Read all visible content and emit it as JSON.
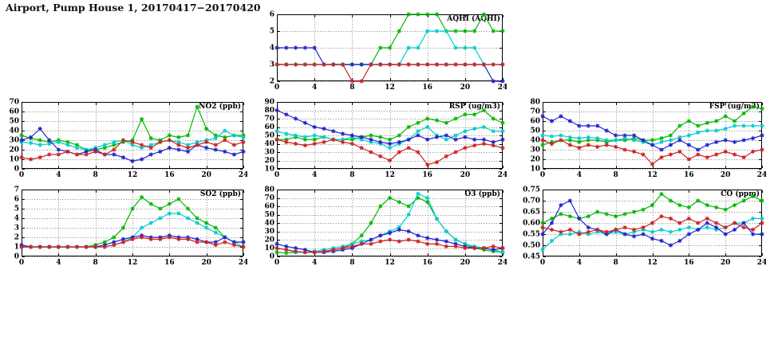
{
  "page_title": "Airport, Pump House 1, 20170417−20170420",
  "palette": {
    "green": "#00b800",
    "cyan": "#00cccc",
    "blue": "#2222cc",
    "red": "#cc2222"
  },
  "chart_data": {
    "note": "see charts array",
    "type": "line"
  },
  "charts": [
    {
      "id": "aqhi",
      "label": "AQHI (AQHI)",
      "type": "line",
      "xlim": [
        0,
        24
      ],
      "x_tick_labels": [
        "0",
        "4",
        "8",
        "12",
        "16",
        "20",
        "24"
      ],
      "x_ticks": [
        0,
        4,
        8,
        12,
        16,
        20,
        24
      ],
      "ylim": [
        2,
        6
      ],
      "y_ticks": [
        2,
        3,
        4,
        5,
        6
      ],
      "y_tick_labels": [
        "2",
        "3",
        "4",
        "5",
        "6"
      ],
      "x_start": 0,
      "x_step": 1,
      "series": [
        {
          "name": "green-series",
          "color": "#00b800",
          "values": [
            3,
            3,
            3,
            3,
            3,
            3,
            3,
            3,
            3,
            3,
            3,
            4,
            4,
            5,
            6,
            6,
            6,
            6,
            5,
            5,
            5,
            5,
            6,
            5,
            5
          ]
        },
        {
          "name": "cyan-series",
          "color": "#00cccc",
          "values": [
            3,
            3,
            3,
            3,
            3,
            3,
            3,
            3,
            3,
            3,
            3,
            3,
            3,
            3,
            4,
            4,
            5,
            5,
            5,
            4,
            4,
            4,
            3,
            3,
            3
          ]
        },
        {
          "name": "blue-series",
          "color": "#2222cc",
          "values": [
            4,
            4,
            4,
            4,
            4,
            3,
            3,
            3,
            3,
            3,
            3,
            3,
            3,
            3,
            3,
            3,
            3,
            3,
            3,
            3,
            3,
            3,
            3,
            2,
            2
          ]
        },
        {
          "name": "red-series",
          "color": "#cc2222",
          "values": [
            3,
            3,
            3,
            3,
            3,
            3,
            3,
            3,
            2,
            2,
            3,
            3,
            3,
            3,
            3,
            3,
            3,
            3,
            3,
            3,
            3,
            3,
            3,
            3,
            3
          ]
        }
      ]
    },
    {
      "id": "no2",
      "label": "NO2 (ppb)",
      "type": "line",
      "xlim": [
        0,
        24
      ],
      "x_tick_labels": [
        "0",
        "4",
        "8",
        "12",
        "16",
        "20",
        "24"
      ],
      "x_ticks": [
        0,
        4,
        8,
        12,
        16,
        20,
        24
      ],
      "ylim": [
        0,
        70
      ],
      "y_ticks": [
        0,
        10,
        20,
        30,
        40,
        50,
        60,
        70
      ],
      "y_tick_labels": [
        "0",
        "10",
        "20",
        "30",
        "40",
        "50",
        "60",
        "70"
      ],
      "x_start": 0,
      "x_step": 1,
      "series": [
        {
          "name": "green-series",
          "color": "#00b800",
          "values": [
            35,
            32,
            30,
            28,
            30,
            28,
            25,
            20,
            20,
            22,
            25,
            28,
            30,
            52,
            32,
            30,
            35,
            33,
            35,
            65,
            42,
            35,
            33,
            35,
            35
          ]
        },
        {
          "name": "cyan-series",
          "color": "#00cccc",
          "values": [
            28,
            27,
            25,
            26,
            28,
            25,
            22,
            20,
            22,
            25,
            28,
            30,
            25,
            22,
            25,
            28,
            30,
            28,
            25,
            28,
            30,
            32,
            40,
            35,
            33
          ]
        },
        {
          "name": "blue-series",
          "color": "#2222cc",
          "values": [
            30,
            33,
            42,
            30,
            20,
            18,
            15,
            18,
            20,
            15,
            15,
            12,
            8,
            10,
            15,
            18,
            22,
            20,
            18,
            25,
            22,
            20,
            18,
            15,
            18
          ]
        },
        {
          "name": "red-series",
          "color": "#cc2222",
          "values": [
            12,
            10,
            12,
            15,
            15,
            18,
            15,
            15,
            18,
            15,
            20,
            30,
            28,
            25,
            22,
            28,
            30,
            25,
            22,
            25,
            28,
            25,
            30,
            25,
            28
          ]
        }
      ]
    },
    {
      "id": "rsp",
      "label": "RSP (ug/m3)",
      "type": "line",
      "xlim": [
        0,
        24
      ],
      "x_tick_labels": [
        "0",
        "4",
        "8",
        "12",
        "16",
        "20",
        "24"
      ],
      "x_ticks": [
        0,
        4,
        8,
        12,
        16,
        20,
        24
      ],
      "ylim": [
        10,
        90
      ],
      "y_ticks": [
        10,
        20,
        30,
        40,
        50,
        60,
        70,
        80,
        90
      ],
      "y_tick_labels": [
        "10",
        "20",
        "30",
        "40",
        "50",
        "60",
        "70",
        "80",
        "90"
      ],
      "x_start": 0,
      "x_step": 1,
      "series": [
        {
          "name": "green-series",
          "color": "#00b800",
          "values": [
            45,
            45,
            48,
            45,
            45,
            48,
            45,
            45,
            45,
            48,
            50,
            48,
            45,
            50,
            60,
            65,
            70,
            68,
            65,
            70,
            75,
            75,
            80,
            70,
            65
          ]
        },
        {
          "name": "cyan-series",
          "color": "#00cccc",
          "values": [
            55,
            52,
            50,
            48,
            50,
            48,
            45,
            45,
            48,
            45,
            42,
            40,
            35,
            40,
            45,
            55,
            60,
            50,
            45,
            50,
            55,
            58,
            60,
            55,
            55
          ]
        },
        {
          "name": "blue-series",
          "color": "#2222cc",
          "values": [
            80,
            75,
            70,
            65,
            60,
            58,
            55,
            52,
            50,
            48,
            45,
            42,
            40,
            42,
            45,
            50,
            45,
            48,
            50,
            45,
            48,
            45,
            45,
            42,
            45
          ]
        },
        {
          "name": "red-series",
          "color": "#cc2222",
          "values": [
            45,
            42,
            40,
            38,
            40,
            42,
            45,
            42,
            40,
            35,
            30,
            25,
            20,
            30,
            35,
            30,
            15,
            18,
            25,
            30,
            35,
            38,
            40,
            38,
            35
          ]
        }
      ]
    },
    {
      "id": "fsp",
      "label": "FSP (ug/m3)",
      "type": "line",
      "xlim": [
        0,
        24
      ],
      "x_tick_labels": [
        "0",
        "4",
        "8",
        "12",
        "16",
        "20",
        "24"
      ],
      "x_ticks": [
        0,
        4,
        8,
        12,
        16,
        20,
        24
      ],
      "ylim": [
        10,
        80
      ],
      "y_ticks": [
        10,
        20,
        30,
        40,
        50,
        60,
        70,
        80
      ],
      "y_tick_labels": [
        "10",
        "20",
        "30",
        "40",
        "50",
        "60",
        "70",
        "80"
      ],
      "x_start": 0,
      "x_step": 1,
      "series": [
        {
          "name": "green-series",
          "color": "#00b800",
          "values": [
            35,
            38,
            40,
            40,
            38,
            40,
            40,
            38,
            40,
            40,
            42,
            40,
            40,
            42,
            45,
            55,
            60,
            55,
            58,
            60,
            65,
            60,
            68,
            75,
            73
          ]
        },
        {
          "name": "cyan-series",
          "color": "#00cccc",
          "values": [
            45,
            44,
            45,
            43,
            42,
            43,
            42,
            40,
            40,
            42,
            40,
            38,
            35,
            38,
            40,
            43,
            45,
            48,
            50,
            50,
            52,
            55,
            55,
            55,
            55
          ]
        },
        {
          "name": "blue-series",
          "color": "#2222cc",
          "values": [
            65,
            60,
            65,
            60,
            55,
            55,
            55,
            50,
            45,
            45,
            45,
            40,
            35,
            30,
            35,
            40,
            35,
            30,
            35,
            38,
            40,
            38,
            40,
            42,
            45
          ]
        },
        {
          "name": "red-series",
          "color": "#cc2222",
          "values": [
            40,
            36,
            40,
            35,
            32,
            35,
            33,
            35,
            33,
            30,
            28,
            25,
            15,
            22,
            25,
            28,
            20,
            25,
            22,
            25,
            28,
            25,
            22,
            28,
            30
          ]
        }
      ]
    },
    {
      "id": "so2",
      "label": "SO2 (ppb)",
      "type": "line",
      "xlim": [
        0,
        24
      ],
      "x_tick_labels": [
        "0",
        "4",
        "8",
        "12",
        "16",
        "20",
        "24"
      ],
      "x_ticks": [
        0,
        4,
        8,
        12,
        16,
        20,
        24
      ],
      "ylim": [
        0,
        7
      ],
      "y_ticks": [
        0,
        1,
        2,
        3,
        4,
        5,
        6,
        7
      ],
      "y_tick_labels": [
        "0",
        "1",
        "2",
        "3",
        "4",
        "5",
        "6",
        "7"
      ],
      "x_start": 0,
      "x_step": 1,
      "series": [
        {
          "name": "green-series",
          "color": "#00b800",
          "values": [
            1,
            1,
            1,
            1,
            1,
            1,
            1,
            1,
            1.2,
            1.5,
            2,
            3,
            5,
            6.2,
            5.5,
            5,
            5.5,
            6,
            5,
            4,
            3.5,
            3,
            2,
            1.5,
            1.5
          ]
        },
        {
          "name": "cyan-series",
          "color": "#00cccc",
          "values": [
            1,
            1,
            1,
            1,
            1,
            1,
            1,
            1,
            1,
            1,
            1.2,
            1.5,
            2,
            3,
            3.5,
            4,
            4.5,
            4.5,
            4,
            3.5,
            3,
            2.5,
            2,
            1.5,
            1
          ]
        },
        {
          "name": "blue-series",
          "color": "#2222cc",
          "values": [
            1.2,
            1,
            1,
            1,
            1,
            1,
            1,
            1,
            1,
            1.2,
            1.5,
            1.8,
            2,
            2.2,
            2,
            2,
            2.2,
            2,
            2,
            1.8,
            1.5,
            1.5,
            2,
            1.5,
            1.5
          ]
        },
        {
          "name": "red-series",
          "color": "#cc2222",
          "values": [
            1,
            1,
            1,
            1,
            1,
            1,
            1,
            1,
            1,
            1,
            1.2,
            1.5,
            1.8,
            2,
            1.8,
            1.8,
            2,
            1.8,
            1.8,
            1.5,
            1.5,
            1.2,
            1.5,
            1.2,
            1
          ]
        }
      ]
    },
    {
      "id": "o3",
      "label": "O3 (ppb)",
      "type": "line",
      "xlim": [
        0,
        24
      ],
      "x_tick_labels": [
        "0",
        "4",
        "8",
        "12",
        "16",
        "20",
        "24"
      ],
      "x_ticks": [
        0,
        4,
        8,
        12,
        16,
        20,
        24
      ],
      "ylim": [
        0,
        80
      ],
      "y_ticks": [
        0,
        10,
        20,
        30,
        40,
        50,
        60,
        70,
        80
      ],
      "y_tick_labels": [
        "0",
        "10",
        "20",
        "30",
        "40",
        "50",
        "60",
        "70",
        "80"
      ],
      "x_start": 0,
      "x_step": 1,
      "series": [
        {
          "name": "green-series",
          "color": "#00b800",
          "values": [
            5,
            4,
            5,
            5,
            5,
            6,
            8,
            10,
            15,
            25,
            40,
            60,
            70,
            65,
            60,
            70,
            65,
            45,
            30,
            20,
            15,
            10,
            8,
            6,
            5
          ]
        },
        {
          "name": "cyan-series",
          "color": "#00cccc",
          "values": [
            10,
            8,
            5,
            5,
            6,
            8,
            10,
            12,
            15,
            18,
            20,
            25,
            30,
            35,
            50,
            75,
            70,
            45,
            30,
            20,
            15,
            12,
            10,
            8,
            5
          ]
        },
        {
          "name": "blue-series",
          "color": "#2222cc",
          "values": [
            15,
            12,
            10,
            8,
            5,
            5,
            6,
            8,
            10,
            15,
            20,
            25,
            28,
            32,
            30,
            25,
            22,
            20,
            18,
            15,
            12,
            10,
            10,
            8,
            10
          ]
        },
        {
          "name": "red-series",
          "color": "#cc2222",
          "values": [
            10,
            8,
            6,
            5,
            5,
            6,
            8,
            10,
            12,
            15,
            15,
            18,
            20,
            18,
            20,
            18,
            15,
            15,
            12,
            12,
            10,
            10,
            10,
            12,
            10
          ]
        }
      ]
    },
    {
      "id": "co",
      "label": "CO (ppm)",
      "type": "line",
      "xlim": [
        0,
        24
      ],
      "x_tick_labels": [
        "0",
        "4",
        "8",
        "12",
        "16",
        "20",
        "24"
      ],
      "x_ticks": [
        0,
        4,
        8,
        12,
        16,
        20,
        24
      ],
      "ylim": [
        0.45,
        0.75
      ],
      "y_ticks": [
        0.45,
        0.5,
        0.55,
        0.6,
        0.65,
        0.7,
        0.75
      ],
      "y_tick_labels": [
        "0.45",
        "0.50",
        "0.55",
        "0.60",
        "0.65",
        "0.70",
        "0.75"
      ],
      "x_start": 0,
      "x_step": 1,
      "series": [
        {
          "name": "green-series",
          "color": "#00b800",
          "values": [
            0.6,
            0.62,
            0.64,
            0.63,
            0.62,
            0.63,
            0.65,
            0.64,
            0.63,
            0.64,
            0.65,
            0.66,
            0.68,
            0.73,
            0.7,
            0.68,
            0.67,
            0.7,
            0.68,
            0.67,
            0.66,
            0.68,
            0.7,
            0.72,
            0.7
          ]
        },
        {
          "name": "cyan-series",
          "color": "#00cccc",
          "values": [
            0.48,
            0.52,
            0.55,
            0.55,
            0.56,
            0.55,
            0.56,
            0.55,
            0.56,
            0.55,
            0.56,
            0.57,
            0.56,
            0.57,
            0.56,
            0.57,
            0.58,
            0.57,
            0.58,
            0.57,
            0.58,
            0.6,
            0.6,
            0.62,
            0.62
          ]
        },
        {
          "name": "blue-series",
          "color": "#2222cc",
          "values": [
            0.55,
            0.6,
            0.68,
            0.7,
            0.62,
            0.58,
            0.57,
            0.55,
            0.57,
            0.55,
            0.54,
            0.55,
            0.53,
            0.52,
            0.5,
            0.52,
            0.55,
            0.57,
            0.6,
            0.58,
            0.55,
            0.57,
            0.6,
            0.55,
            0.55
          ]
        },
        {
          "name": "red-series",
          "color": "#cc2222",
          "values": [
            0.58,
            0.57,
            0.56,
            0.57,
            0.55,
            0.56,
            0.57,
            0.56,
            0.57,
            0.58,
            0.57,
            0.58,
            0.6,
            0.63,
            0.62,
            0.6,
            0.62,
            0.6,
            0.62,
            0.6,
            0.58,
            0.6,
            0.58,
            0.57,
            0.6
          ]
        }
      ]
    }
  ]
}
